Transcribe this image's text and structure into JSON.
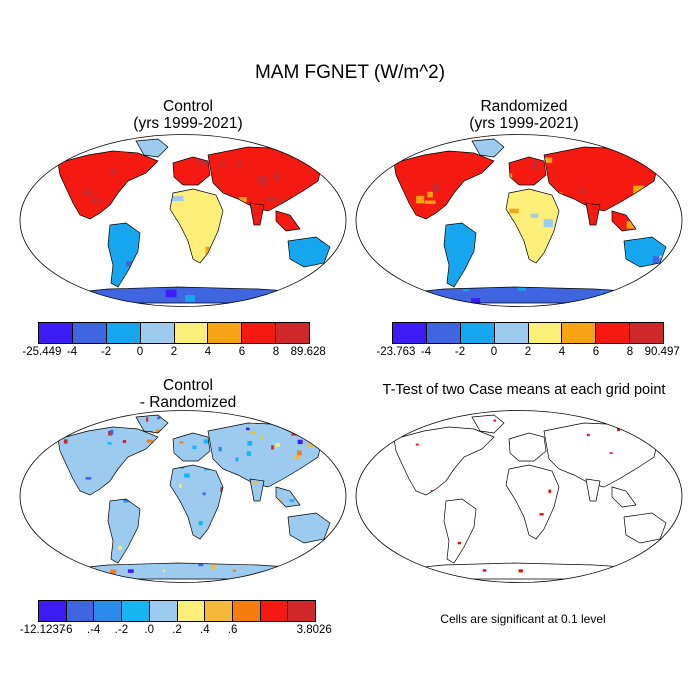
{
  "title": "MAM FGNET (W/m^2)",
  "panels": [
    {
      "id": "control",
      "title_line1": "Control",
      "title_line2": "(yrs 1999-2021)",
      "colorbar": {
        "labels": [
          "-25.449",
          "-4",
          "-2",
          "0",
          "2",
          "4",
          "6",
          "8",
          "89.628"
        ]
      }
    },
    {
      "id": "randomized",
      "title_line1": "Randomized",
      "title_line2": "(yrs 1999-2021)",
      "colorbar": {
        "labels": [
          "-23.763",
          "-4",
          "-2",
          "0",
          "2",
          "4",
          "6",
          "8",
          "90.497"
        ]
      }
    },
    {
      "id": "difference",
      "title_line1": "Control",
      "title_line2": "- Randomized",
      "colorbar": {
        "labels": [
          "-12.1237",
          ".-6",
          ".-4",
          ".-2",
          ".0",
          ".2",
          ".4",
          ".6",
          "3.8026"
        ]
      }
    },
    {
      "id": "ttest",
      "title_line1": "T-Test of two Case means at each grid point",
      "title_line2": "",
      "note": "Cells are significant at 0.1 level"
    }
  ],
  "colors": {
    "scale8": [
      "#3d1cf5",
      "#3f65e0",
      "#16a6f0",
      "#9ccbef",
      "#fbef7a",
      "#f6a414",
      "#f41a12",
      "#d0282a"
    ],
    "scale9": [
      "#3d1cf5",
      "#3f65e0",
      "#2a8ce8",
      "#16b6f2",
      "#9ccbef",
      "#fbef7a",
      "#f6b83a",
      "#f67c10",
      "#f41a12",
      "#d0282a"
    ],
    "significant": "#e01010",
    "ocean": "#ffffff",
    "coast": "#000000"
  }
}
